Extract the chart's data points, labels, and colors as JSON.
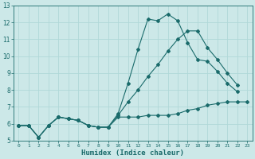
{
  "xlabel": "Humidex (Indice chaleur)",
  "bg_color": "#cce8e8",
  "grid_color": "#b0d8d8",
  "line_color": "#1a6b6b",
  "xlim": [
    -0.5,
    23.5
  ],
  "ylim": [
    5,
    13
  ],
  "xticks": [
    0,
    1,
    2,
    3,
    4,
    5,
    6,
    7,
    8,
    9,
    10,
    11,
    12,
    13,
    14,
    15,
    16,
    17,
    18,
    19,
    20,
    21,
    22,
    23
  ],
  "yticks": [
    5,
    6,
    7,
    8,
    9,
    10,
    11,
    12,
    13
  ],
  "lines": [
    {
      "x": [
        0,
        1,
        2,
        3,
        4,
        5,
        6,
        7,
        8,
        9,
        10,
        11,
        12,
        13,
        14,
        15,
        16,
        17,
        18,
        19,
        20,
        21,
        22,
        23
      ],
      "y": [
        5.9,
        5.9,
        5.2,
        5.9,
        6.4,
        6.3,
        6.2,
        5.9,
        5.8,
        5.8,
        6.4,
        6.4,
        6.4,
        6.5,
        6.5,
        6.5,
        6.6,
        6.8,
        6.9,
        7.1,
        7.2,
        7.3,
        7.3,
        7.3
      ]
    },
    {
      "x": [
        0,
        1,
        2,
        3,
        4,
        5,
        6,
        7,
        8,
        9,
        10,
        11,
        12,
        13,
        14,
        15,
        16,
        17,
        18,
        19,
        20,
        21,
        22
      ],
      "y": [
        5.9,
        5.9,
        5.2,
        5.9,
        6.4,
        6.3,
        6.2,
        5.9,
        5.8,
        5.8,
        6.5,
        7.3,
        8.0,
        8.8,
        9.5,
        10.3,
        11.0,
        11.5,
        11.5,
        10.5,
        9.8,
        9.0,
        8.3
      ]
    },
    {
      "x": [
        0,
        1,
        2,
        3,
        4,
        5,
        6,
        7,
        8,
        9,
        10,
        11,
        12,
        13,
        14,
        15,
        16,
        17,
        18,
        19,
        20,
        21,
        22
      ],
      "y": [
        5.9,
        5.9,
        5.2,
        5.9,
        6.4,
        6.3,
        6.2,
        5.9,
        5.8,
        5.8,
        6.6,
        8.4,
        10.4,
        12.2,
        12.1,
        12.5,
        12.1,
        10.8,
        9.8,
        9.7,
        9.1,
        8.4,
        7.9
      ]
    }
  ]
}
